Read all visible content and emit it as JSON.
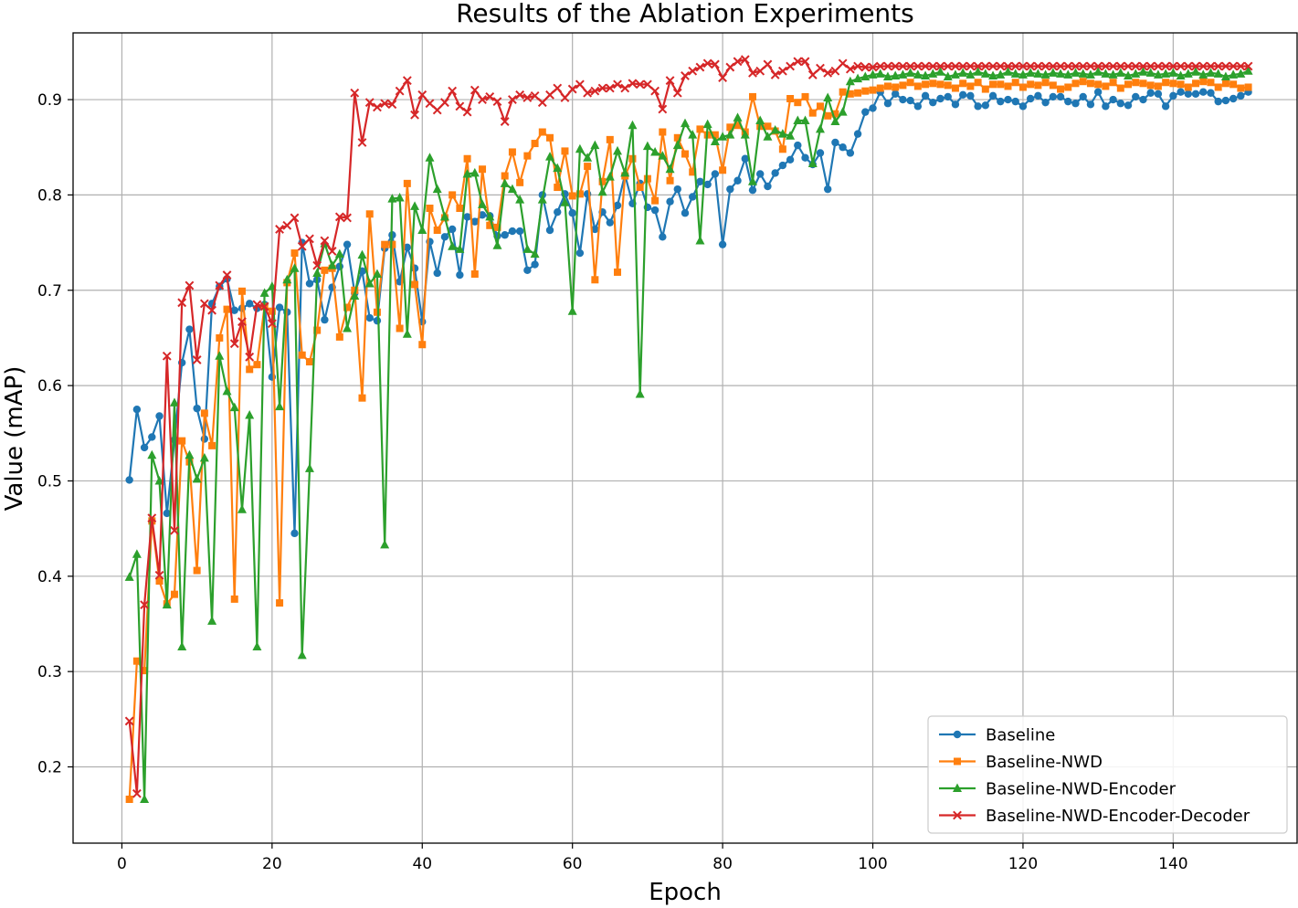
{
  "chart_data": {
    "type": "line",
    "title": "Results of the Ablation Experiments",
    "xlabel": "Epoch",
    "ylabel": "Value (mAP)",
    "xlim": [
      -6.5,
      156.5
    ],
    "ylim": [
      0.12,
      0.97
    ],
    "xticks": [
      0,
      20,
      40,
      60,
      80,
      100,
      120,
      140
    ],
    "yticks": [
      0.2,
      0.3,
      0.4,
      0.5,
      0.6,
      0.7,
      0.8,
      0.9
    ],
    "grid": true,
    "legend_position": "lower-right",
    "x": [
      1,
      2,
      3,
      4,
      5,
      6,
      7,
      8,
      9,
      10,
      11,
      12,
      13,
      14,
      15,
      16,
      17,
      18,
      19,
      20,
      21,
      22,
      23,
      24,
      25,
      26,
      27,
      28,
      29,
      30,
      31,
      32,
      33,
      34,
      35,
      36,
      37,
      38,
      39,
      40,
      41,
      42,
      43,
      44,
      45,
      46,
      47,
      48,
      49,
      50,
      51,
      52,
      53,
      54,
      55,
      56,
      57,
      58,
      59,
      60,
      61,
      62,
      63,
      64,
      65,
      66,
      67,
      68,
      69,
      70,
      71,
      72,
      73,
      74,
      75,
      76,
      77,
      78,
      79,
      80,
      81,
      82,
      83,
      84,
      85,
      86,
      87,
      88,
      89,
      90,
      91,
      92,
      93,
      94,
      95,
      96,
      97,
      98,
      99,
      100,
      101,
      102,
      103,
      104,
      105,
      106,
      107,
      108,
      109,
      110,
      111,
      112,
      113,
      114,
      115,
      116,
      117,
      118,
      119,
      120,
      121,
      122,
      123,
      124,
      125,
      126,
      127,
      128,
      129,
      130,
      131,
      132,
      133,
      134,
      135,
      136,
      137,
      138,
      139,
      140,
      141,
      142,
      143,
      144,
      145,
      146,
      147,
      148,
      149,
      150
    ],
    "series": [
      {
        "name": "Baseline",
        "color": "#1f77b4",
        "marker": "circle",
        "values": [
          0.501,
          0.575,
          0.535,
          0.546,
          0.568,
          0.466,
          0.543,
          0.624,
          0.659,
          0.576,
          0.544,
          0.686,
          0.704,
          0.712,
          0.679,
          0.681,
          0.686,
          0.681,
          0.685,
          0.609,
          0.682,
          0.677,
          0.445,
          0.75,
          0.707,
          0.711,
          0.669,
          0.703,
          0.725,
          0.748,
          0.697,
          0.72,
          0.671,
          0.668,
          0.744,
          0.758,
          0.709,
          0.745,
          0.723,
          0.667,
          0.751,
          0.718,
          0.756,
          0.764,
          0.716,
          0.777,
          0.772,
          0.779,
          0.778,
          0.757,
          0.758,
          0.762,
          0.762,
          0.721,
          0.727,
          0.8,
          0.763,
          0.782,
          0.801,
          0.781,
          0.739,
          0.801,
          0.764,
          0.782,
          0.771,
          0.789,
          0.821,
          0.791,
          0.812,
          0.787,
          0.784,
          0.756,
          0.793,
          0.806,
          0.781,
          0.798,
          0.814,
          0.811,
          0.822,
          0.748,
          0.806,
          0.815,
          0.838,
          0.805,
          0.822,
          0.809,
          0.823,
          0.831,
          0.837,
          0.852,
          0.839,
          0.832,
          0.844,
          0.806,
          0.855,
          0.85,
          0.844,
          0.864,
          0.887,
          0.891,
          0.908,
          0.896,
          0.906,
          0.9,
          0.899,
          0.893,
          0.904,
          0.897,
          0.901,
          0.903,
          0.895,
          0.905,
          0.904,
          0.893,
          0.894,
          0.904,
          0.898,
          0.9,
          0.898,
          0.893,
          0.901,
          0.904,
          0.897,
          0.903,
          0.903,
          0.898,
          0.896,
          0.903,
          0.895,
          0.908,
          0.893,
          0.9,
          0.896,
          0.894,
          0.903,
          0.9,
          0.907,
          0.906,
          0.893,
          0.904,
          0.908,
          0.906,
          0.906,
          0.908,
          0.907,
          0.898,
          0.899,
          0.901,
          0.904,
          0.908
        ]
      },
      {
        "name": "Baseline-NWD",
        "color": "#ff7f0e",
        "marker": "square",
        "values": [
          0.166,
          0.311,
          0.301,
          0.458,
          0.395,
          0.371,
          0.381,
          0.542,
          0.52,
          0.406,
          0.571,
          0.537,
          0.65,
          0.68,
          0.376,
          0.699,
          0.617,
          0.622,
          0.683,
          0.678,
          0.372,
          0.708,
          0.739,
          0.632,
          0.625,
          0.658,
          0.721,
          0.723,
          0.651,
          0.682,
          0.7,
          0.587,
          0.78,
          0.677,
          0.748,
          0.748,
          0.66,
          0.812,
          0.706,
          0.643,
          0.786,
          0.763,
          0.776,
          0.8,
          0.786,
          0.838,
          0.717,
          0.827,
          0.768,
          0.766,
          0.82,
          0.845,
          0.813,
          0.841,
          0.854,
          0.866,
          0.86,
          0.808,
          0.846,
          0.799,
          0.801,
          0.83,
          0.711,
          0.814,
          0.858,
          0.719,
          0.82,
          0.838,
          0.808,
          0.817,
          0.794,
          0.866,
          0.815,
          0.86,
          0.843,
          0.824,
          0.869,
          0.863,
          0.863,
          0.826,
          0.871,
          0.873,
          0.866,
          0.903,
          0.872,
          0.872,
          0.867,
          0.848,
          0.901,
          0.897,
          0.903,
          0.886,
          0.893,
          0.883,
          0.885,
          0.908,
          0.906,
          0.907,
          0.909,
          0.91,
          0.912,
          0.914,
          0.913,
          0.915,
          0.918,
          0.914,
          0.916,
          0.917,
          0.916,
          0.915,
          0.912,
          0.917,
          0.914,
          0.918,
          0.911,
          0.916,
          0.916,
          0.914,
          0.918,
          0.913,
          0.916,
          0.915,
          0.918,
          0.915,
          0.911,
          0.913,
          0.917,
          0.919,
          0.917,
          0.916,
          0.914,
          0.918,
          0.912,
          0.916,
          0.918,
          0.917,
          0.915,
          0.914,
          0.918,
          0.917,
          0.916,
          0.913,
          0.917,
          0.919,
          0.918,
          0.913,
          0.917,
          0.916,
          0.912,
          0.913
        ]
      },
      {
        "name": "Baseline-NWD-Encoder",
        "color": "#2ca02c",
        "marker": "triangle",
        "values": [
          0.399,
          0.423,
          0.166,
          0.527,
          0.5,
          0.37,
          0.582,
          0.326,
          0.527,
          0.502,
          0.524,
          0.353,
          0.631,
          0.594,
          0.577,
          0.47,
          0.569,
          0.326,
          0.697,
          0.704,
          0.578,
          0.711,
          0.723,
          0.317,
          0.513,
          0.718,
          0.749,
          0.726,
          0.738,
          0.66,
          0.694,
          0.737,
          0.707,
          0.717,
          0.433,
          0.796,
          0.797,
          0.654,
          0.788,
          0.763,
          0.839,
          0.806,
          0.777,
          0.746,
          0.743,
          0.822,
          0.823,
          0.79,
          0.777,
          0.747,
          0.812,
          0.806,
          0.795,
          0.743,
          0.738,
          0.795,
          0.84,
          0.828,
          0.792,
          0.678,
          0.848,
          0.839,
          0.852,
          0.803,
          0.819,
          0.846,
          0.823,
          0.873,
          0.591,
          0.851,
          0.845,
          0.841,
          0.827,
          0.852,
          0.875,
          0.863,
          0.752,
          0.874,
          0.856,
          0.861,
          0.863,
          0.881,
          0.863,
          0.814,
          0.878,
          0.861,
          0.868,
          0.864,
          0.862,
          0.878,
          0.878,
          0.833,
          0.869,
          0.902,
          0.877,
          0.887,
          0.919,
          0.922,
          0.924,
          0.926,
          0.927,
          0.924,
          0.925,
          0.926,
          0.928,
          0.926,
          0.925,
          0.927,
          0.929,
          0.924,
          0.926,
          0.928,
          0.926,
          0.929,
          0.927,
          0.925,
          0.926,
          0.929,
          0.927,
          0.926,
          0.928,
          0.927,
          0.926,
          0.928,
          0.927,
          0.926,
          0.928,
          0.927,
          0.926,
          0.929,
          0.927,
          0.926,
          0.928,
          0.925,
          0.927,
          0.929,
          0.928,
          0.926,
          0.927,
          0.928,
          0.925,
          0.927,
          0.929,
          0.926,
          0.928,
          0.927,
          0.924,
          0.926,
          0.927,
          0.93
        ]
      },
      {
        "name": "Baseline-NWD-Encoder-Decoder",
        "color": "#d62728",
        "marker": "x",
        "values": [
          0.248,
          0.172,
          0.37,
          0.461,
          0.401,
          0.631,
          0.448,
          0.687,
          0.705,
          0.627,
          0.686,
          0.679,
          0.705,
          0.716,
          0.644,
          0.667,
          0.63,
          0.685,
          0.683,
          0.665,
          0.764,
          0.768,
          0.776,
          0.746,
          0.754,
          0.726,
          0.752,
          0.741,
          0.777,
          0.776,
          0.907,
          0.855,
          0.897,
          0.892,
          0.896,
          0.895,
          0.909,
          0.92,
          0.884,
          0.905,
          0.896,
          0.889,
          0.897,
          0.909,
          0.893,
          0.887,
          0.91,
          0.9,
          0.903,
          0.898,
          0.877,
          0.9,
          0.905,
          0.902,
          0.904,
          0.897,
          0.905,
          0.912,
          0.902,
          0.911,
          0.916,
          0.907,
          0.909,
          0.912,
          0.912,
          0.916,
          0.912,
          0.917,
          0.916,
          0.916,
          0.909,
          0.89,
          0.92,
          0.907,
          0.925,
          0.93,
          0.934,
          0.938,
          0.937,
          0.923,
          0.934,
          0.94,
          0.942,
          0.928,
          0.93,
          0.937,
          0.926,
          0.93,
          0.935,
          0.94,
          0.94,
          0.926,
          0.933,
          0.928,
          0.93,
          0.938,
          0.932,
          0.935,
          0.934,
          0.934,
          0.935,
          0.935,
          0.935,
          0.935,
          0.935,
          0.935,
          0.935,
          0.935,
          0.935,
          0.935,
          0.935,
          0.935,
          0.935,
          0.935,
          0.935,
          0.935,
          0.935,
          0.935,
          0.935,
          0.935,
          0.935,
          0.935,
          0.935,
          0.935,
          0.935,
          0.935,
          0.935,
          0.935,
          0.935,
          0.935,
          0.935,
          0.935,
          0.935,
          0.935,
          0.935,
          0.935,
          0.935,
          0.935,
          0.935,
          0.935,
          0.935,
          0.935,
          0.935,
          0.935,
          0.935,
          0.935,
          0.935,
          0.935,
          0.935,
          0.935
        ]
      }
    ]
  }
}
